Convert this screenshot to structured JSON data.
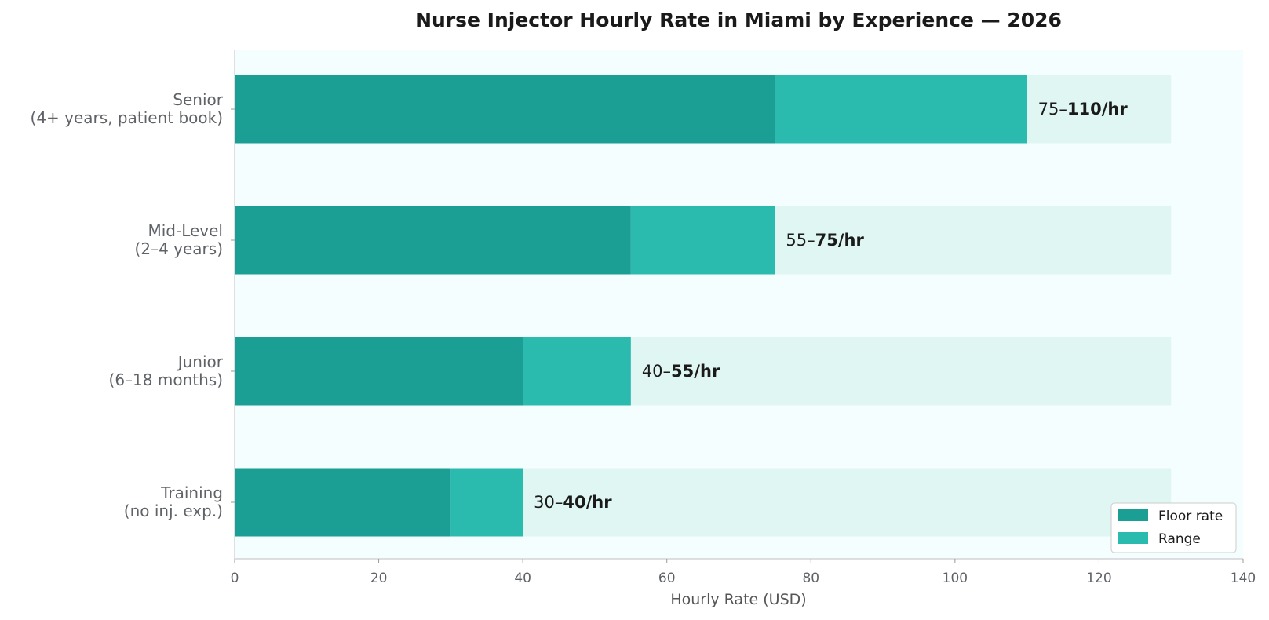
{
  "chart_data": {
    "type": "bar",
    "orientation": "horizontal",
    "stacked": true,
    "title": "Nurse Injector Hourly Rate in Miami by Experience — 2026",
    "xlabel": "Hourly Rate (USD)",
    "ylabel": "",
    "xlim": [
      0,
      140
    ],
    "xticks": [
      0,
      20,
      40,
      60,
      80,
      100,
      120,
      140
    ],
    "background_bar_max": 130,
    "categories": [
      [
        "Senior",
        "(4+ years, patient book)"
      ],
      [
        "Mid-Level",
        "(2–4 years)"
      ],
      [
        "Junior",
        "(6–18 months)"
      ],
      [
        "Training",
        "(no inj. exp.)"
      ]
    ],
    "floor": [
      75,
      55,
      40,
      30
    ],
    "ceiling": [
      110,
      75,
      55,
      40
    ],
    "series": [
      {
        "name": "Floor rate",
        "values": [
          75,
          55,
          40,
          30
        ],
        "color": "#1b9e93"
      },
      {
        "name": "Range",
        "values": [
          35,
          20,
          15,
          10
        ],
        "color": "#2bbaae"
      }
    ],
    "data_labels": [
      {
        "low": "75–",
        "high": "110/hr"
      },
      {
        "low": "55–",
        "high": "75/hr"
      },
      {
        "low": "40–",
        "high": "55/hr"
      },
      {
        "low": "30–",
        "high": "40/hr"
      }
    ],
    "legend": {
      "position": "bottom-right",
      "entries": [
        "Floor rate",
        "Range"
      ]
    },
    "grid": false,
    "colors": {
      "plot_background": "#f5fefe",
      "track": "#e0f6f2",
      "floor": "#1b9e93",
      "range": "#2bbaae",
      "axis": "#cccccc"
    }
  }
}
